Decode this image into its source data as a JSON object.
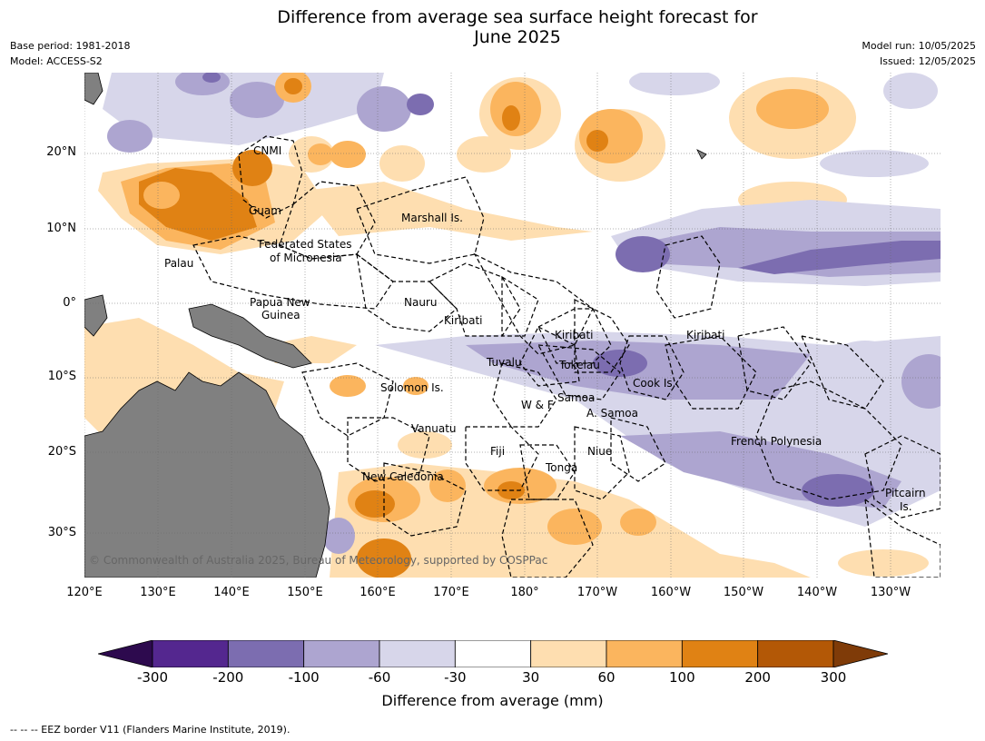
{
  "title_line1": "Difference from average sea surface height forecast for",
  "title_line2": "June 2025",
  "meta_left": [
    "Base period: 1981-2018",
    "Model: ACCESS-S2"
  ],
  "meta_right": [
    "Model run: 10/05/2025",
    "Issued: 12/05/2025"
  ],
  "lat_ticks": [
    "20°N",
    "10°N",
    "0°",
    "10°S",
    "20°S",
    "30°S"
  ],
  "lon_ticks": [
    "120°E",
    "130°E",
    "140°E",
    "150°E",
    "160°E",
    "170°E",
    "180°",
    "170°W",
    "160°W",
    "150°W",
    "140°W",
    "130°W"
  ],
  "places": {
    "cnmi": "CNMI",
    "guam": "Guam",
    "marshall": "Marshall Is.",
    "fsm1": "Federated States",
    "fsm2": "of Micronesia",
    "palau": "Palau",
    "png1": "Papua New",
    "png2": "Guinea",
    "nauru": "Nauru",
    "kiribati1": "Kiribati",
    "kiribati2": "Kiribati",
    "kiribati3": "Kiribati",
    "tuvalu": "Tuvalu",
    "tokelau": "Tokelau",
    "cook": "Cook Is.",
    "solomon": "Solomon Is.",
    "samoa": "Samoa",
    "wf": "W & F",
    "asamoa": "A. Samoa",
    "vanuatu": "Vanuatu",
    "fiji": "Fiji",
    "niue": "Niue",
    "frpoly": "French Polynesia",
    "tonga": "Tonga",
    "newcal": "New Caledonia",
    "pitcairn1": "Pitcairn",
    "pitcairn2": "Is."
  },
  "copyright": "© Commonwealth of Australia 2025, Bureau of Meteorology, supported by COSPPac",
  "colorbar": {
    "ticks": [
      "-300",
      "-200",
      "-100",
      "-60",
      "-30",
      "30",
      "60",
      "100",
      "200",
      "300"
    ],
    "colors": [
      "#2d0a4e",
      "#54278f",
      "#7c6db0",
      "#ada5d0",
      "#d7d6ea",
      "#ffffff",
      "#fedeb0",
      "#fbb55e",
      "#e08214",
      "#b35806",
      "#7f3b08"
    ],
    "label": "Difference from average (mm)"
  },
  "footnote": "--  --  -- EEZ border V11 (Flanders Marine Institute, 2019)."
}
